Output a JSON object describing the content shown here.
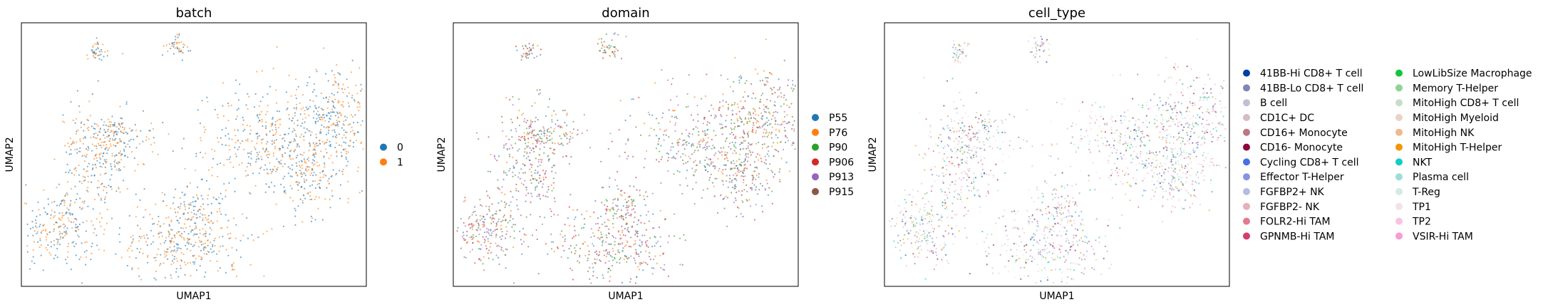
{
  "chart_data": [
    {
      "type": "scatter",
      "title": "batch",
      "xlabel": "UMAP1",
      "ylabel": "UMAP2",
      "grid": false,
      "legend_position": "right",
      "legend_columns": 1,
      "series": [
        {
          "name": "0",
          "color": "#1f77b4"
        },
        {
          "name": "1",
          "color": "#ff7f0e"
        }
      ]
    },
    {
      "type": "scatter",
      "title": "domain",
      "xlabel": "UMAP1",
      "ylabel": "UMAP2",
      "grid": false,
      "legend_position": "right",
      "legend_columns": 1,
      "series": [
        {
          "name": "P55",
          "color": "#1f77b4"
        },
        {
          "name": "P76",
          "color": "#ff7f0e"
        },
        {
          "name": "P90",
          "color": "#2ca02c"
        },
        {
          "name": "P906",
          "color": "#d62728"
        },
        {
          "name": "P913",
          "color": "#9467bd"
        },
        {
          "name": "P915",
          "color": "#8c564b"
        }
      ]
    },
    {
      "type": "scatter",
      "title": "cell_type",
      "xlabel": "UMAP1",
      "ylabel": "UMAP2",
      "grid": false,
      "legend_position": "right",
      "legend_columns": 2,
      "series": [
        {
          "name": "41BB-Hi CD8+ T cell",
          "color": "#023fa5"
        },
        {
          "name": "41BB-Lo CD8+ T cell",
          "color": "#7d87b9"
        },
        {
          "name": "B cell",
          "color": "#bec1d4"
        },
        {
          "name": "CD1C+ DC",
          "color": "#d6bcc0"
        },
        {
          "name": "CD16+ Monocyte",
          "color": "#bb7784"
        },
        {
          "name": "CD16- Monocyte",
          "color": "#8e063b"
        },
        {
          "name": "Cycling CD8+ T cell",
          "color": "#4a6fe3"
        },
        {
          "name": "Effector T-Helper",
          "color": "#8595e1"
        },
        {
          "name": "FGFBP2+ NK",
          "color": "#b5bbe3"
        },
        {
          "name": "FGFBP2- NK",
          "color": "#e6afb9"
        },
        {
          "name": "FOLR2-Hi TAM",
          "color": "#e07b91"
        },
        {
          "name": "GPNMB-Hi TAM",
          "color": "#d33f6a"
        },
        {
          "name": "LowLibSize Macrophage",
          "color": "#11c638"
        },
        {
          "name": "Memory T-Helper",
          "color": "#8dd593"
        },
        {
          "name": "MitoHigh CD8+ T cell",
          "color": "#c6dec7"
        },
        {
          "name": "MitoHigh Myeloid",
          "color": "#ead3c6"
        },
        {
          "name": "MitoHigh NK",
          "color": "#f0b98d"
        },
        {
          "name": "MitoHigh T-Helper",
          "color": "#ef9708"
        },
        {
          "name": "NKT",
          "color": "#0fcfc0"
        },
        {
          "name": "Plasma cell",
          "color": "#9cded6"
        },
        {
          "name": "T-Reg",
          "color": "#d5eae7"
        },
        {
          "name": "TP1",
          "color": "#f3e1eb"
        },
        {
          "name": "TP2",
          "color": "#f6c4e1"
        },
        {
          "name": "VSIR-Hi TAM",
          "color": "#f79cd4"
        }
      ]
    }
  ]
}
